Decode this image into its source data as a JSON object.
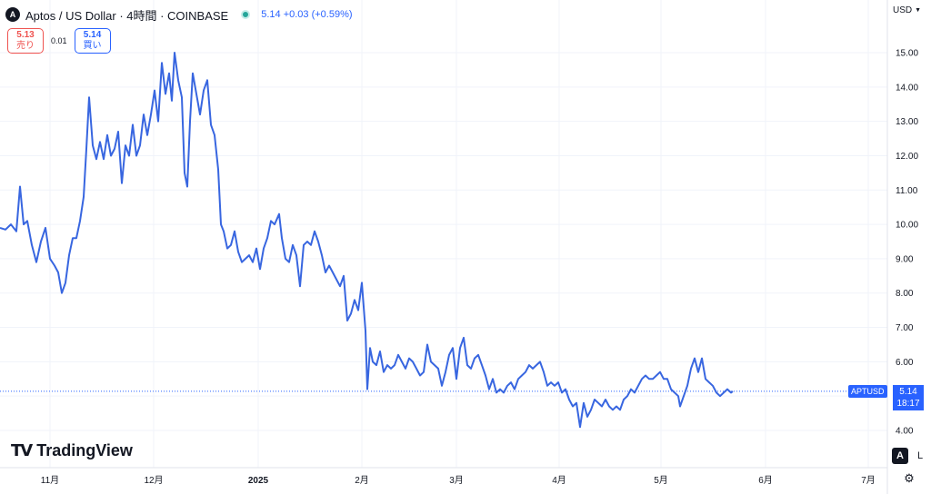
{
  "header": {
    "logo_glyph": "A",
    "title": "Aptos / US Dollar · 4時間 · COINBASE",
    "quote": "5.14 +0.03 (+0.59%)",
    "status_color": "#26a69a"
  },
  "trade": {
    "sell_price": "5.13",
    "sell_label": "売り",
    "spread": "0.01",
    "buy_price": "5.14",
    "buy_label": "買い"
  },
  "currency": "USD",
  "currency_chevron": "chevron-down-icon",
  "brand": {
    "mark": "TV",
    "name": "TradingView"
  },
  "controls": {
    "auto": "A",
    "log": "L",
    "settings_icon": "gear-icon"
  },
  "last_price": {
    "symbol": "APTUSD",
    "price": "5.14",
    "countdown": "18:17"
  },
  "colors": {
    "line": "#3866e0",
    "accent": "#2962ff",
    "sell": "#ef5350",
    "grid": "#f0f3fa"
  },
  "chart_data": {
    "type": "line",
    "symbol": "APTUSD",
    "ylim": [
      3.6,
      15.4
    ],
    "y_ticks": [
      "4.00",
      "5.00",
      "6.00",
      "7.00",
      "8.00",
      "9.00",
      "10.00",
      "11.00",
      "12.00",
      "13.00",
      "14.00",
      "15.00"
    ],
    "x_labels": [
      {
        "label": "11月",
        "t": 55
      },
      {
        "label": "12月",
        "t": 169
      },
      {
        "label": "2025",
        "t": 284
      },
      {
        "label": "2月",
        "t": 398
      },
      {
        "label": "3月",
        "t": 502
      },
      {
        "label": "4月",
        "t": 615
      },
      {
        "label": "5月",
        "t": 727
      },
      {
        "label": "6月",
        "t": 842
      },
      {
        "label": "7月",
        "t": 955
      }
    ],
    "xlim": [
      0,
      976
    ],
    "last_value": 5.14,
    "series": [
      {
        "points": [
          [
            0,
            9.9
          ],
          [
            6,
            9.85
          ],
          [
            12,
            10.0
          ],
          [
            18,
            9.8
          ],
          [
            22,
            11.1
          ],
          [
            26,
            10.0
          ],
          [
            30,
            10.1
          ],
          [
            35,
            9.4
          ],
          [
            40,
            8.9
          ],
          [
            45,
            9.5
          ],
          [
            50,
            9.9
          ],
          [
            55,
            9.0
          ],
          [
            60,
            8.8
          ],
          [
            64,
            8.6
          ],
          [
            68,
            8.0
          ],
          [
            72,
            8.3
          ],
          [
            76,
            9.1
          ],
          [
            80,
            9.6
          ],
          [
            84,
            9.6
          ],
          [
            88,
            10.1
          ],
          [
            92,
            10.8
          ],
          [
            95,
            12.2
          ],
          [
            98,
            13.7
          ],
          [
            102,
            12.3
          ],
          [
            106,
            11.9
          ],
          [
            110,
            12.4
          ],
          [
            114,
            11.9
          ],
          [
            118,
            12.6
          ],
          [
            122,
            12.0
          ],
          [
            126,
            12.2
          ],
          [
            130,
            12.7
          ],
          [
            134,
            11.2
          ],
          [
            138,
            12.3
          ],
          [
            142,
            12.0
          ],
          [
            146,
            12.9
          ],
          [
            150,
            12.0
          ],
          [
            154,
            12.3
          ],
          [
            158,
            13.2
          ],
          [
            162,
            12.6
          ],
          [
            166,
            13.2
          ],
          [
            170,
            13.9
          ],
          [
            174,
            13.0
          ],
          [
            178,
            14.7
          ],
          [
            182,
            13.8
          ],
          [
            186,
            14.4
          ],
          [
            189,
            13.6
          ],
          [
            192,
            15.0
          ],
          [
            196,
            14.2
          ],
          [
            200,
            13.7
          ],
          [
            203,
            11.5
          ],
          [
            206,
            11.1
          ],
          [
            209,
            13.0
          ],
          [
            212,
            14.4
          ],
          [
            216,
            13.8
          ],
          [
            220,
            13.2
          ],
          [
            224,
            13.9
          ],
          [
            228,
            14.2
          ],
          [
            232,
            12.9
          ],
          [
            236,
            12.6
          ],
          [
            240,
            11.6
          ],
          [
            243,
            10.0
          ],
          [
            246,
            9.8
          ],
          [
            250,
            9.3
          ],
          [
            254,
            9.4
          ],
          [
            258,
            9.8
          ],
          [
            262,
            9.2
          ],
          [
            266,
            8.9
          ],
          [
            270,
            9.0
          ],
          [
            274,
            9.1
          ],
          [
            278,
            8.9
          ],
          [
            282,
            9.3
          ],
          [
            286,
            8.7
          ],
          [
            290,
            9.3
          ],
          [
            294,
            9.6
          ],
          [
            298,
            10.1
          ],
          [
            302,
            10.0
          ],
          [
            307,
            10.3
          ],
          [
            310,
            9.6
          ],
          [
            314,
            9.0
          ],
          [
            318,
            8.9
          ],
          [
            322,
            9.4
          ],
          [
            326,
            9.1
          ],
          [
            330,
            8.2
          ],
          [
            334,
            9.4
          ],
          [
            338,
            9.5
          ],
          [
            342,
            9.4
          ],
          [
            346,
            9.8
          ],
          [
            350,
            9.5
          ],
          [
            354,
            9.1
          ],
          [
            358,
            8.6
          ],
          [
            362,
            8.8
          ],
          [
            366,
            8.6
          ],
          [
            370,
            8.4
          ],
          [
            374,
            8.2
          ],
          [
            378,
            8.5
          ],
          [
            382,
            7.2
          ],
          [
            386,
            7.4
          ],
          [
            390,
            7.8
          ],
          [
            394,
            7.5
          ],
          [
            398,
            8.3
          ],
          [
            402,
            6.9
          ],
          [
            404,
            5.2
          ],
          [
            407,
            6.4
          ],
          [
            410,
            6.0
          ],
          [
            414,
            5.9
          ],
          [
            418,
            6.3
          ],
          [
            422,
            5.7
          ],
          [
            426,
            5.9
          ],
          [
            430,
            5.8
          ],
          [
            434,
            5.9
          ],
          [
            438,
            6.2
          ],
          [
            442,
            6.0
          ],
          [
            446,
            5.8
          ],
          [
            450,
            6.1
          ],
          [
            454,
            6.0
          ],
          [
            458,
            5.8
          ],
          [
            462,
            5.6
          ],
          [
            466,
            5.7
          ],
          [
            470,
            6.5
          ],
          [
            474,
            6.0
          ],
          [
            478,
            5.9
          ],
          [
            482,
            5.8
          ],
          [
            486,
            5.3
          ],
          [
            490,
            5.7
          ],
          [
            494,
            6.2
          ],
          [
            498,
            6.4
          ],
          [
            502,
            5.5
          ],
          [
            506,
            6.4
          ],
          [
            510,
            6.7
          ],
          [
            514,
            5.9
          ],
          [
            518,
            5.8
          ],
          [
            522,
            6.1
          ],
          [
            526,
            6.2
          ],
          [
            530,
            5.9
          ],
          [
            534,
            5.6
          ],
          [
            538,
            5.2
          ],
          [
            542,
            5.5
          ],
          [
            546,
            5.1
          ],
          [
            550,
            5.2
          ],
          [
            554,
            5.1
          ],
          [
            558,
            5.3
          ],
          [
            562,
            5.4
          ],
          [
            566,
            5.2
          ],
          [
            570,
            5.5
          ],
          [
            574,
            5.6
          ],
          [
            578,
            5.7
          ],
          [
            582,
            5.9
          ],
          [
            586,
            5.8
          ],
          [
            590,
            5.9
          ],
          [
            594,
            6.0
          ],
          [
            598,
            5.7
          ],
          [
            602,
            5.3
          ],
          [
            606,
            5.4
          ],
          [
            610,
            5.3
          ],
          [
            614,
            5.4
          ],
          [
            618,
            5.1
          ],
          [
            622,
            5.2
          ],
          [
            626,
            4.9
          ],
          [
            630,
            4.7
          ],
          [
            634,
            4.8
          ],
          [
            638,
            4.1
          ],
          [
            642,
            4.8
          ],
          [
            646,
            4.4
          ],
          [
            650,
            4.6
          ],
          [
            654,
            4.9
          ],
          [
            658,
            4.8
          ],
          [
            662,
            4.7
          ],
          [
            666,
            4.9
          ],
          [
            670,
            4.7
          ],
          [
            674,
            4.6
          ],
          [
            678,
            4.7
          ],
          [
            682,
            4.6
          ],
          [
            686,
            4.9
          ],
          [
            690,
            5.0
          ],
          [
            694,
            5.2
          ],
          [
            698,
            5.1
          ],
          [
            702,
            5.3
          ],
          [
            706,
            5.5
          ],
          [
            710,
            5.6
          ],
          [
            714,
            5.5
          ],
          [
            718,
            5.5
          ],
          [
            722,
            5.6
          ],
          [
            726,
            5.7
          ],
          [
            730,
            5.5
          ],
          [
            734,
            5.5
          ],
          [
            738,
            5.2
          ],
          [
            742,
            5.1
          ],
          [
            746,
            5.0
          ],
          [
            748,
            4.7
          ],
          [
            752,
            5.0
          ],
          [
            756,
            5.3
          ],
          [
            760,
            5.8
          ],
          [
            764,
            6.1
          ],
          [
            768,
            5.7
          ],
          [
            772,
            6.1
          ],
          [
            776,
            5.5
          ],
          [
            780,
            5.4
          ],
          [
            784,
            5.3
          ],
          [
            788,
            5.1
          ],
          [
            792,
            5.0
          ],
          [
            796,
            5.1
          ],
          [
            800,
            5.2
          ],
          [
            804,
            5.1
          ],
          [
            806,
            5.14
          ]
        ]
      }
    ]
  }
}
